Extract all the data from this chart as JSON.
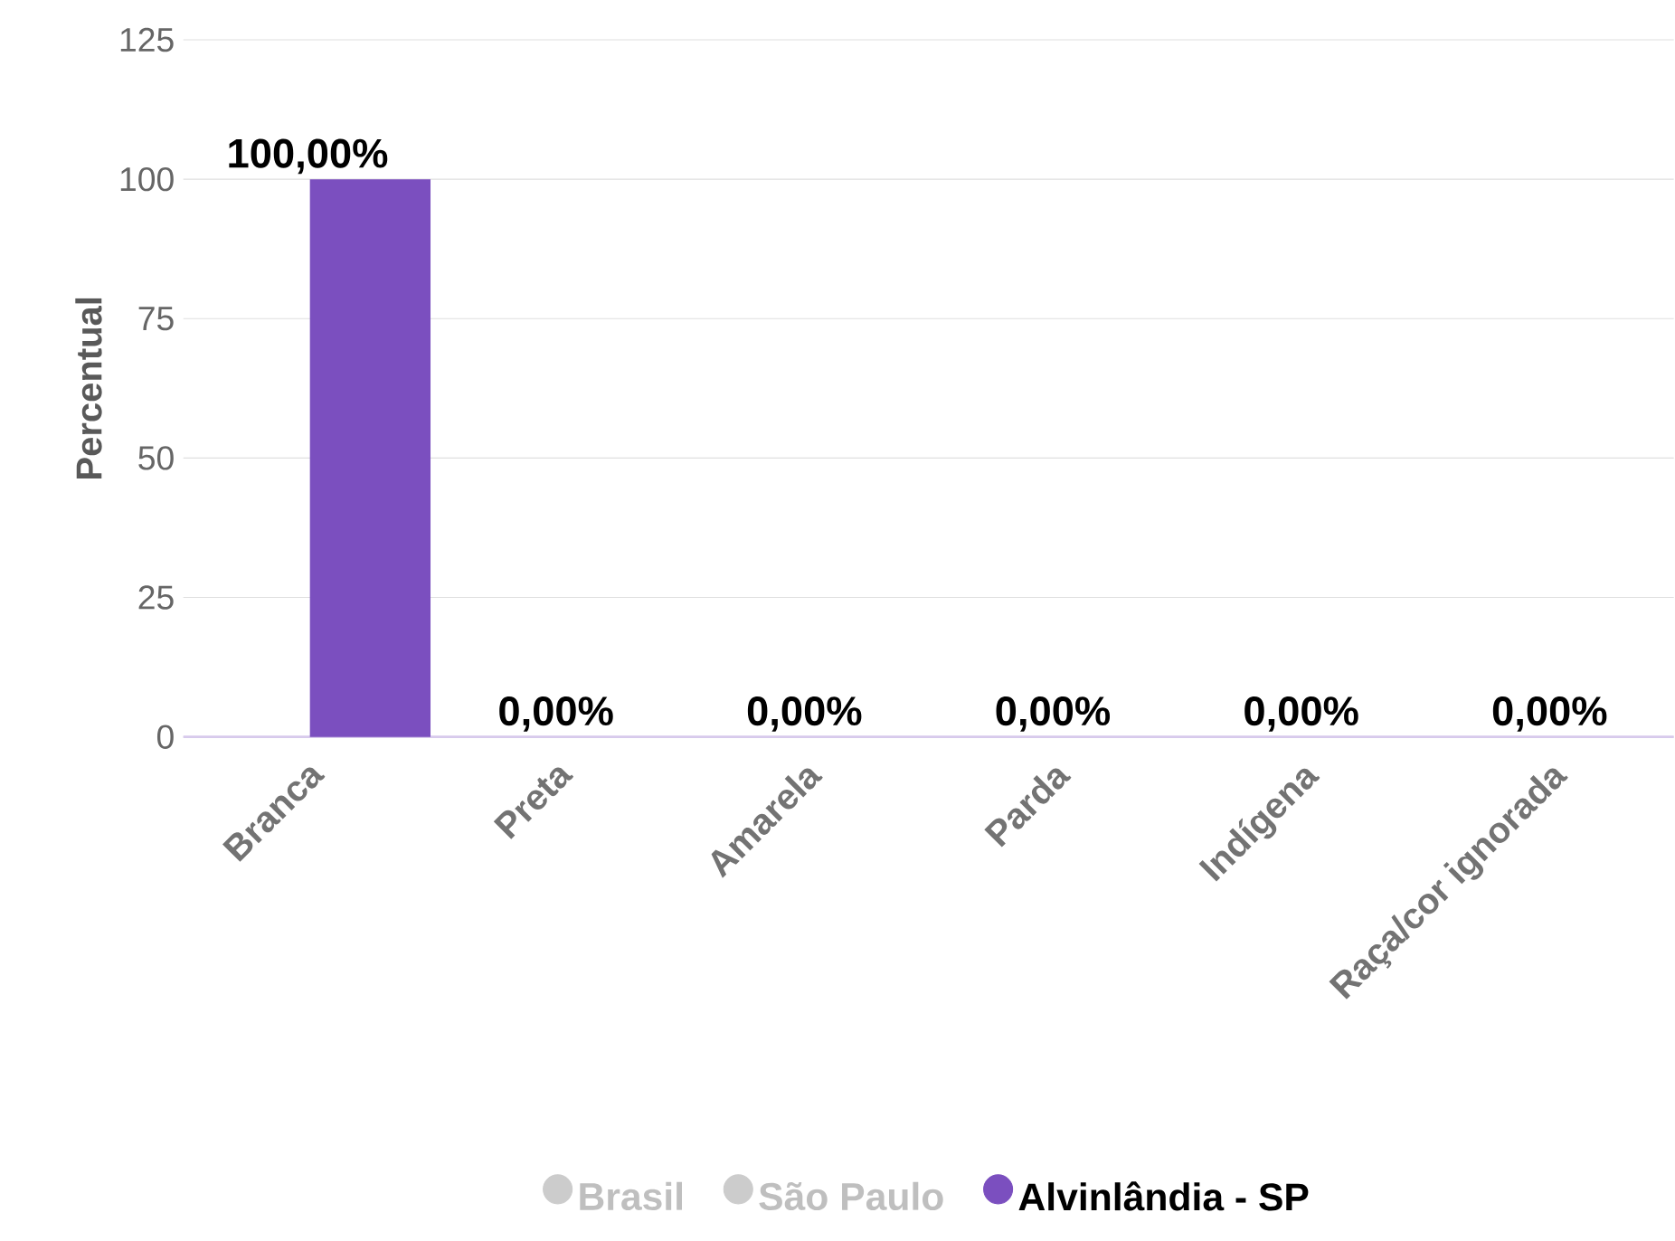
{
  "chart_data": {
    "type": "bar",
    "ylabel": "Percentual",
    "categories": [
      "Branca",
      "Preta",
      "Amarela",
      "Parda",
      "Indígena",
      "Raça/cor ignorada"
    ],
    "series": [
      {
        "name": "Brasil",
        "color": "#cccccc",
        "values": [
          null,
          null,
          null,
          null,
          null,
          null
        ]
      },
      {
        "name": "São Paulo",
        "color": "#cccccc",
        "values": [
          null,
          null,
          null,
          null,
          null,
          null
        ]
      },
      {
        "name": "Alvinlândia - SP",
        "color": "#7b4fbf",
        "values": [
          100,
          0,
          0,
          0,
          0,
          0
        ],
        "value_labels": [
          "100,00%",
          "0,00%",
          "0,00%",
          "0,00%",
          "0,00%",
          "0,00%"
        ]
      }
    ],
    "ylim": [
      0,
      125
    ],
    "yticks": [
      0,
      25,
      50,
      75,
      100,
      125
    ],
    "grid": "y",
    "legend": "bottom"
  }
}
